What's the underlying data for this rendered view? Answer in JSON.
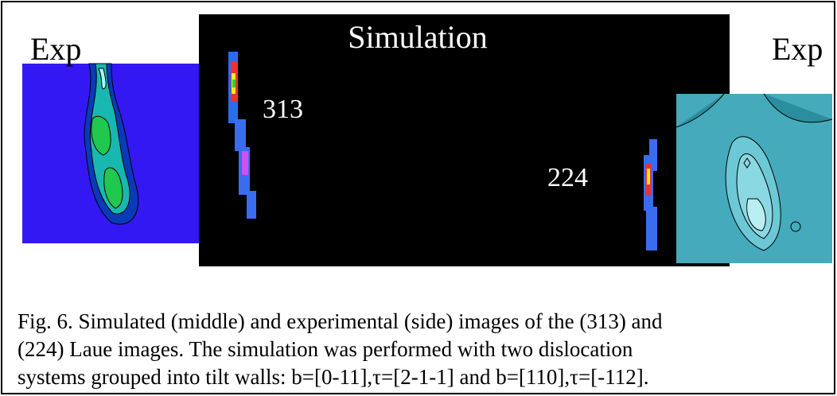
{
  "figure": {
    "labels": {
      "exp_left": "Exp",
      "simulation": "Simulation",
      "spot_313": "313",
      "spot_224": "224",
      "exp_right": "Exp"
    },
    "caption": {
      "lines": [
        "Fig. 6. Simulated (middle) and experimental (side) images of the (313) and",
        "(224) Laue images. The simulation was performed with two dislocation",
        "systems grouped into tilt walls: b=[0-11],τ=[2-1-1] and b=[110],τ=[-112]."
      ]
    }
  }
}
